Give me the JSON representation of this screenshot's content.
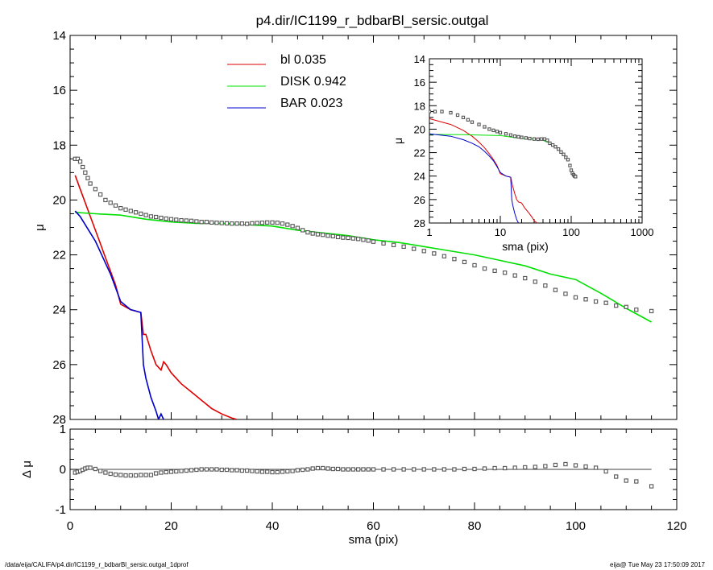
{
  "title": "p4.dir/IC1199_r_bdbarBl_sersic.outgal",
  "footer": {
    "left": "/data/eija/CALIFA/p4.dir/IC1199_r_bdbarBl_sersic.outgal_1dprof",
    "right": "eija@  Tue May 23 17:50:09 2017"
  },
  "colors": {
    "bl": "#e00000",
    "disk": "#00e000",
    "bar": "#0000cc",
    "data": "#555555"
  },
  "chart_data": [
    {
      "type": "line",
      "panel": "main",
      "xlabel": "sma (pix)",
      "ylabel": "μ",
      "xlim": [
        0,
        120
      ],
      "ylim": [
        28,
        14
      ],
      "xticks": [
        "0",
        "20",
        "40",
        "60",
        "80",
        "100",
        "120"
      ],
      "yticks": [
        "14",
        "16",
        "18",
        "20",
        "22",
        "24",
        "26",
        "28"
      ],
      "legend": [
        "bl  0.035",
        "DISK  0.942",
        "BAR  0.023"
      ],
      "legend_position": "top-center",
      "series": [
        {
          "name": "bl",
          "color": "#e00000",
          "x": [
            1,
            2,
            3,
            4,
            5,
            6,
            7,
            8,
            9,
            10,
            11,
            12,
            13,
            14,
            14.5,
            15,
            16,
            17,
            18,
            18.5,
            19,
            20,
            22,
            24,
            26,
            28,
            30,
            32,
            33
          ],
          "y": [
            19.1,
            19.6,
            20.1,
            20.6,
            21.1,
            21.6,
            22.1,
            22.6,
            23.1,
            23.8,
            23.9,
            24.0,
            24.05,
            24.1,
            24.9,
            24.9,
            25.5,
            26.0,
            26.2,
            25.9,
            26.0,
            26.3,
            26.7,
            27.0,
            27.3,
            27.6,
            27.8,
            27.95,
            28.0
          ]
        },
        {
          "name": "DISK",
          "color": "#00e000",
          "x": [
            1,
            5,
            10,
            15,
            20,
            25,
            30,
            35,
            40,
            45,
            50,
            55,
            60,
            65,
            70,
            75,
            80,
            85,
            90,
            95,
            100,
            105,
            110,
            115
          ],
          "y": [
            20.45,
            20.5,
            20.55,
            20.7,
            20.8,
            20.85,
            20.85,
            20.9,
            20.95,
            21.1,
            21.2,
            21.3,
            21.45,
            21.55,
            21.7,
            21.85,
            22.0,
            22.2,
            22.4,
            22.7,
            22.9,
            23.4,
            23.95,
            24.45
          ]
        },
        {
          "name": "BAR",
          "color": "#0000cc",
          "x": [
            1,
            2,
            3,
            4,
            5,
            6,
            7,
            8,
            9,
            10,
            11,
            12,
            13,
            14,
            14.5,
            15,
            16,
            17,
            17.5,
            18,
            18.5
          ],
          "y": [
            20.4,
            20.6,
            20.9,
            21.2,
            21.5,
            21.9,
            22.3,
            22.7,
            23.2,
            23.7,
            23.85,
            24.0,
            24.05,
            24.1,
            26.0,
            26.5,
            27.2,
            27.7,
            28.0,
            27.8,
            28.0
          ]
        },
        {
          "name": "data",
          "color": "#555555",
          "marker": "square",
          "x": [
            1,
            1.5,
            2,
            2.5,
            3,
            3.5,
            4,
            5,
            6,
            7,
            8,
            9,
            10,
            11,
            12,
            13,
            14,
            15,
            16,
            17,
            18,
            19,
            20,
            21,
            22,
            23,
            24,
            25,
            26,
            27,
            28,
            29,
            30,
            31,
            32,
            33,
            34,
            35,
            36,
            37,
            38,
            39,
            40,
            41,
            42,
            43,
            44,
            45,
            46,
            47,
            48,
            49,
            50,
            51,
            52,
            53,
            54,
            55,
            56,
            57,
            58,
            59,
            60,
            62,
            64,
            66,
            68,
            70,
            72,
            74,
            76,
            78,
            80,
            82,
            84,
            86,
            88,
            90,
            92,
            94,
            96,
            98,
            100,
            102,
            104,
            106,
            108,
            110,
            112,
            115
          ],
          "y": [
            18.5,
            18.5,
            18.6,
            18.8,
            19.0,
            19.2,
            19.4,
            19.6,
            19.8,
            20.0,
            20.1,
            20.2,
            20.3,
            20.35,
            20.4,
            20.45,
            20.5,
            20.55,
            20.6,
            20.62,
            20.65,
            20.68,
            20.7,
            20.72,
            20.74,
            20.75,
            20.76,
            20.78,
            20.8,
            20.8,
            20.82,
            20.83,
            20.84,
            20.85,
            20.86,
            20.86,
            20.86,
            20.87,
            20.85,
            20.84,
            20.83,
            20.82,
            20.82,
            20.83,
            20.86,
            20.9,
            20.95,
            21.02,
            21.1,
            21.18,
            21.22,
            21.25,
            21.27,
            21.3,
            21.32,
            21.35,
            21.37,
            21.38,
            21.4,
            21.42,
            21.45,
            21.48,
            21.52,
            21.58,
            21.64,
            21.7,
            21.78,
            21.86,
            21.95,
            22.05,
            22.15,
            22.26,
            22.38,
            22.5,
            22.58,
            22.65,
            22.75,
            22.85,
            22.98,
            23.12,
            23.28,
            23.42,
            23.55,
            23.62,
            23.7,
            23.75,
            23.85,
            23.9,
            24.0,
            24.05
          ]
        }
      ]
    },
    {
      "type": "scatter",
      "panel": "residual",
      "xlabel": "sma (pix)",
      "ylabel": "Δ μ",
      "xlim": [
        0,
        120
      ],
      "ylim": [
        -1,
        1
      ],
      "xticks": [
        "0",
        "20",
        "40",
        "60",
        "80",
        "100",
        "120"
      ],
      "yticks": [
        "-1",
        "0",
        "1"
      ],
      "series": [
        {
          "name": "residual",
          "color": "#555555",
          "marker": "square",
          "x": [
            1,
            1.5,
            2,
            2.5,
            3,
            3.5,
            4,
            5,
            6,
            7,
            8,
            9,
            10,
            11,
            12,
            13,
            14,
            15,
            16,
            17,
            18,
            19,
            20,
            21,
            22,
            23,
            24,
            25,
            26,
            27,
            28,
            29,
            30,
            31,
            32,
            33,
            34,
            35,
            36,
            37,
            38,
            39,
            40,
            41,
            42,
            43,
            44,
            45,
            46,
            47,
            48,
            49,
            50,
            51,
            52,
            53,
            54,
            55,
            56,
            57,
            58,
            59,
            60,
            62,
            64,
            66,
            68,
            70,
            72,
            74,
            76,
            78,
            80,
            82,
            84,
            86,
            88,
            90,
            92,
            94,
            96,
            98,
            100,
            102,
            104,
            106,
            108,
            110,
            112,
            115
          ],
          "y": [
            -0.08,
            -0.06,
            -0.04,
            -0.01,
            0.02,
            0.04,
            0.04,
            0.01,
            -0.04,
            -0.08,
            -0.11,
            -0.13,
            -0.14,
            -0.15,
            -0.15,
            -0.15,
            -0.14,
            -0.14,
            -0.14,
            -0.1,
            -0.08,
            -0.07,
            -0.06,
            -0.05,
            -0.04,
            -0.03,
            -0.02,
            -0.01,
            0.0,
            0.0,
            0.0,
            0.0,
            -0.01,
            -0.01,
            -0.02,
            -0.02,
            -0.03,
            -0.03,
            -0.04,
            -0.05,
            -0.06,
            -0.06,
            -0.07,
            -0.07,
            -0.06,
            -0.05,
            -0.04,
            -0.02,
            -0.01,
            0.0,
            0.02,
            0.03,
            0.03,
            0.02,
            0.01,
            0.01,
            0.0,
            0.0,
            0.0,
            0.0,
            0.0,
            0.0,
            0.0,
            0.0,
            0.0,
            0.0,
            0.0,
            0.0,
            0.0,
            0.0,
            0.0,
            0.01,
            0.01,
            0.02,
            0.03,
            0.03,
            0.04,
            0.05,
            0.06,
            0.08,
            0.11,
            0.13,
            0.1,
            0.07,
            0.04,
            -0.05,
            -0.18,
            -0.28,
            -0.3,
            -0.42
          ]
        }
      ]
    },
    {
      "type": "line",
      "panel": "inset",
      "xlabel": "sma (pix)",
      "ylabel": "μ",
      "xscale": "log",
      "xlim": [
        1,
        1000
      ],
      "ylim": [
        28,
        14
      ],
      "xticks": [
        "1",
        "10",
        "100",
        "1000"
      ],
      "yticks": [
        "14",
        "16",
        "18",
        "20",
        "22",
        "24",
        "26",
        "28"
      ],
      "series": [
        {
          "name": "bl",
          "color": "#e00000",
          "x": [
            1,
            2,
            3,
            4,
            5,
            6,
            7,
            8,
            9,
            10,
            12,
            14,
            15,
            16,
            17,
            18,
            20,
            22,
            25,
            28,
            30,
            33
          ],
          "y": [
            19.1,
            19.6,
            20.1,
            20.6,
            21.1,
            21.6,
            22.1,
            22.6,
            23.1,
            23.8,
            24.0,
            24.1,
            24.9,
            25.5,
            26.0,
            26.2,
            26.3,
            26.7,
            27.1,
            27.5,
            27.8,
            28.0
          ]
        },
        {
          "name": "DISK",
          "color": "#00e000",
          "x": [
            1,
            3,
            5,
            10,
            20,
            30,
            40,
            50
          ],
          "y": [
            20.45,
            20.47,
            20.5,
            20.55,
            20.8,
            20.85,
            20.95,
            21.2
          ]
        },
        {
          "name": "BAR",
          "color": "#0000cc",
          "x": [
            1,
            2,
            3,
            4,
            5,
            6,
            7,
            8,
            9,
            10,
            12,
            14,
            14.5,
            15,
            16,
            17,
            18
          ],
          "y": [
            20.4,
            20.6,
            20.9,
            21.2,
            21.5,
            21.9,
            22.3,
            22.7,
            23.2,
            23.7,
            24.0,
            24.1,
            26.0,
            26.5,
            27.2,
            27.7,
            28.0
          ]
        },
        {
          "name": "data",
          "color": "#555555",
          "marker": "square",
          "x": [
            1,
            1.2,
            1.5,
            2,
            2.5,
            3,
            3.5,
            4,
            5,
            6,
            7,
            8,
            9,
            10,
            12,
            14,
            16,
            18,
            20,
            23,
            26,
            30,
            34,
            38,
            42,
            46,
            50,
            55,
            60,
            66,
            72,
            78,
            84,
            90,
            96,
            100,
            104,
            108,
            112,
            115
          ],
          "y": [
            18.5,
            18.5,
            18.5,
            18.6,
            18.8,
            19.0,
            19.2,
            19.4,
            19.6,
            19.8,
            20.0,
            20.1,
            20.2,
            20.3,
            20.4,
            20.5,
            20.6,
            20.65,
            20.7,
            20.75,
            20.8,
            20.84,
            20.86,
            20.84,
            20.84,
            20.95,
            21.2,
            21.35,
            21.5,
            21.7,
            21.95,
            22.15,
            22.4,
            22.6,
            23.1,
            23.5,
            23.75,
            23.9,
            24.0,
            24.05
          ]
        }
      ]
    }
  ]
}
